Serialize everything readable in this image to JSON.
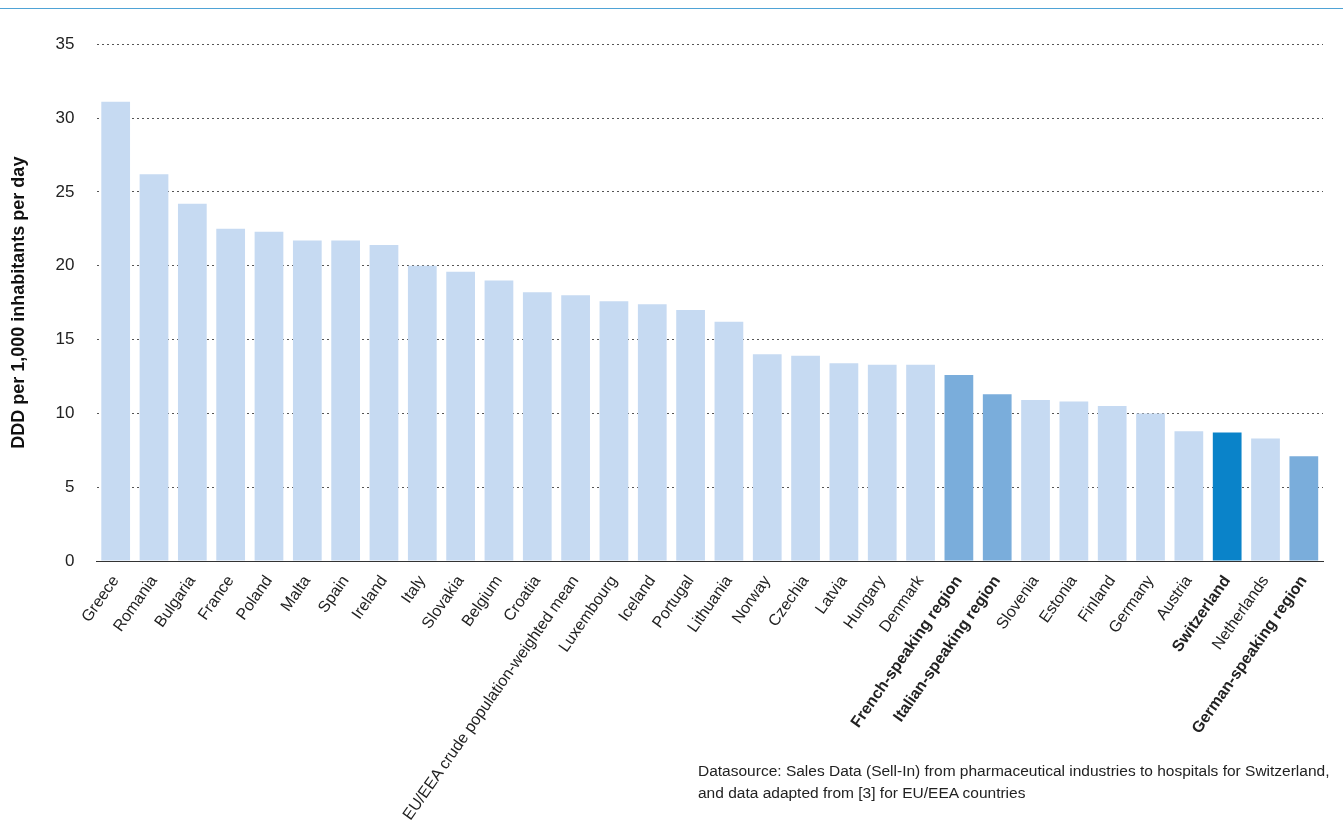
{
  "chart_data": {
    "type": "bar",
    "ylabel": "DDD per 1,000 inhabitants per day",
    "categories": [
      "Greece",
      "Romania",
      "Bulgaria",
      "France",
      "Poland",
      "Malta",
      "Spain",
      "Ireland",
      "Italy",
      "Slovakia",
      "Belgium",
      "Croatia",
      "EU/EEA crude population-weighted mean",
      "Luxembourg",
      "Iceland",
      "Portugal",
      "Lithuania",
      "Norway",
      "Czechia",
      "Latvia",
      "Hungary",
      "Denmark",
      "French-speaking region",
      "Italian-speaking region",
      "Slovenia",
      "Estonia",
      "Finland",
      "Germany",
      "Austria",
      "Switzerland",
      "Netherlands",
      "German-speaking region"
    ],
    "values": [
      31.1,
      26.2,
      24.2,
      22.5,
      22.3,
      21.7,
      21.7,
      21.4,
      20.0,
      19.6,
      19.0,
      18.2,
      18.0,
      17.6,
      17.4,
      17.0,
      16.2,
      14.0,
      13.9,
      13.4,
      13.3,
      13.3,
      12.6,
      11.3,
      10.9,
      10.8,
      10.5,
      10.0,
      8.8,
      8.7,
      8.3,
      7.1
    ],
    "colors": [
      "#c6daf2",
      "#c6daf2",
      "#c6daf2",
      "#c6daf2",
      "#c6daf2",
      "#c6daf2",
      "#c6daf2",
      "#c6daf2",
      "#c6daf2",
      "#c6daf2",
      "#c6daf2",
      "#c6daf2",
      "#c6daf2",
      "#c6daf2",
      "#c6daf2",
      "#c6daf2",
      "#c6daf2",
      "#c6daf2",
      "#c6daf2",
      "#c6daf2",
      "#c6daf2",
      "#c6daf2",
      "#7aaddb",
      "#7aaddb",
      "#c6daf2",
      "#c6daf2",
      "#c6daf2",
      "#c6daf2",
      "#c6daf2",
      "#0a83c9",
      "#c6daf2",
      "#7aaddb"
    ],
    "ylim": [
      0,
      35
    ],
    "yticks": [
      0,
      5,
      10,
      15,
      20,
      25,
      30,
      35
    ],
    "grid": "y",
    "legend": false,
    "annotations": [
      "Datasource: Sales Data (Sell-In) from pharmaceutical industries to hospitals for Switzerland, and data adapted from [3] for EU/EEA countries"
    ]
  }
}
